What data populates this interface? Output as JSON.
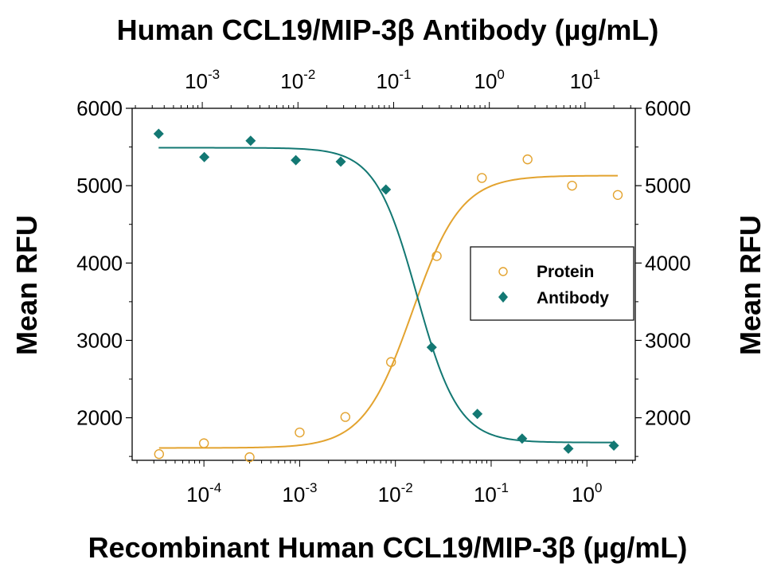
{
  "chart_data": {
    "type": "scatter",
    "top_title": "Human CCL19/MIP-3β Antibody (µg/mL)",
    "xlabel": "Recombinant Human CCL19/MIP-3β (µg/mL)",
    "ylabel_left": "Mean RFU",
    "ylabel_right": "Mean RFU",
    "x_scale": "log",
    "x_range": [
      1.78e-05,
      3.2
    ],
    "y_range": [
      1450,
      6000
    ],
    "y_ticks": [
      2000,
      3000,
      4000,
      5000,
      6000
    ],
    "x_ticks_bottom": [
      {
        "value": 0.0001,
        "base": "10",
        "exp": "-4"
      },
      {
        "value": 0.001,
        "base": "10",
        "exp": "-3"
      },
      {
        "value": 0.01,
        "base": "10",
        "exp": "-2"
      },
      {
        "value": 0.1,
        "base": "10",
        "exp": "-1"
      },
      {
        "value": 1,
        "base": "10",
        "exp": "0"
      }
    ],
    "top_axis": {
      "scale": "log",
      "range": [
        0.000185,
        33.5
      ],
      "ticks": [
        {
          "value": 0.001,
          "base": "10",
          "exp": "-3"
        },
        {
          "value": 0.01,
          "base": "10",
          "exp": "-2"
        },
        {
          "value": 0.1,
          "base": "10",
          "exp": "-1"
        },
        {
          "value": 1,
          "base": "10",
          "exp": "0"
        },
        {
          "value": 10,
          "base": "10",
          "exp": "1"
        }
      ]
    },
    "legend_position": "center-right",
    "grid": false,
    "series": [
      {
        "name": "Protein",
        "marker": "open-circle",
        "color": "#E3A32F",
        "axis": "bottom",
        "x": [
          3.4e-05,
          0.0001,
          0.0003,
          0.001,
          0.003,
          0.009,
          0.027,
          0.08,
          0.24,
          0.7,
          2.1
        ],
        "y": [
          1530,
          1670,
          1490,
          1810,
          2010,
          2720,
          4090,
          5100,
          5340,
          5000,
          4880
        ],
        "fit": {
          "bottom": 1610,
          "top": 5130,
          "ec50": 0.015,
          "hill": 1.7
        }
      },
      {
        "name": "Antibody",
        "marker": "filled-diamond",
        "color": "#137873",
        "axis": "top",
        "x": [
          0.00035,
          0.00105,
          0.0032,
          0.0095,
          0.028,
          0.083,
          0.25,
          0.75,
          2.2,
          6.7,
          20
        ],
        "y": [
          5670,
          5370,
          5580,
          5330,
          5310,
          4950,
          2910,
          2050,
          1730,
          1600,
          1640
        ],
        "fit": {
          "bottom": 1680,
          "top": 5490,
          "ic50": 0.175,
          "hill": 2.0
        }
      }
    ]
  }
}
